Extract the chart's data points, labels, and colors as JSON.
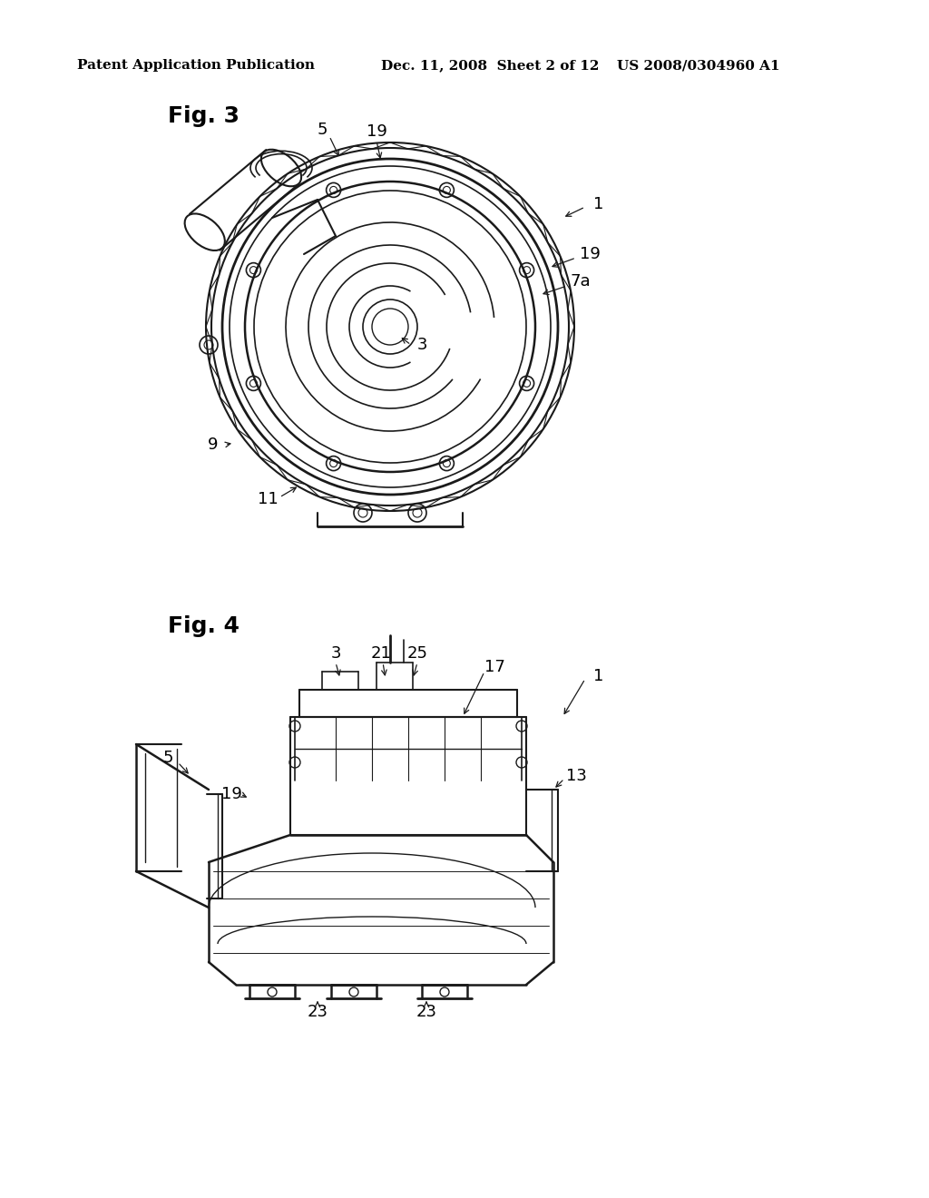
{
  "background_color": "#ffffff",
  "header_text": "Patent Application Publication",
  "header_date": "Dec. 11, 2008  Sheet 2 of 12",
  "header_patent": "US 2008/0304960 A1",
  "fig3_label": "Fig. 3",
  "fig4_label": "Fig. 4",
  "line_color": "#1a1a1a",
  "text_color": "#000000",
  "header_font_size": 11,
  "fig_label_font_size": 18,
  "annotation_font_size": 13
}
